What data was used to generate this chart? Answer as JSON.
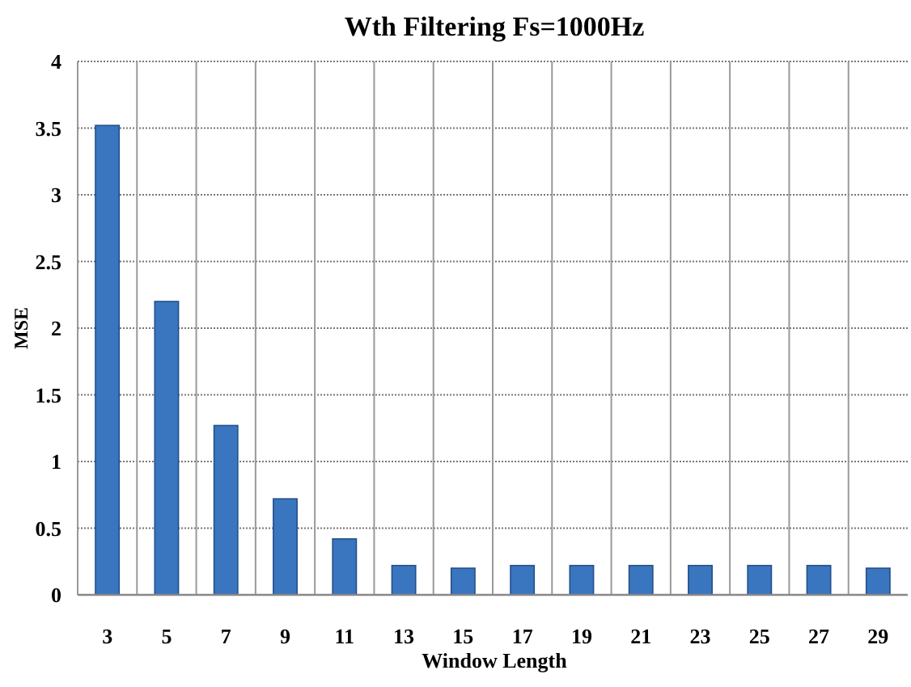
{
  "chart_data": {
    "type": "bar",
    "title": "Wth Filtering Fs=1000Hz",
    "xlabel": "Window Length",
    "ylabel": "MSE",
    "categories": [
      "3",
      "5",
      "7",
      "9",
      "11",
      "13",
      "15",
      "17",
      "19",
      "21",
      "23",
      "25",
      "27",
      "29"
    ],
    "values": [
      3.52,
      2.2,
      1.27,
      0.72,
      0.42,
      0.22,
      0.2,
      0.22,
      0.22,
      0.22,
      0.22,
      0.22,
      0.22,
      0.2
    ],
    "color": "#3a75bf",
    "ylim": [
      0,
      4
    ],
    "yticks": [
      0,
      {
        "value": 0.5,
        "label": "0.5"
      },
      1,
      {
        "value": 1.5,
        "label": "1.5"
      },
      2,
      {
        "value": 2.5,
        "label": "2.5"
      },
      3,
      {
        "value": 3.5,
        "label": "3.5"
      },
      4
    ],
    "grid": true
  }
}
